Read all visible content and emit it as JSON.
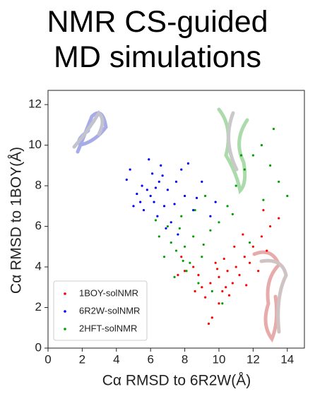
{
  "chart_data": {
    "type": "scatter",
    "title": "NMR CS-guided MD simulations",
    "xlabel": "Cα RMSD to 6R2W(Å)",
    "ylabel": "Cα RMSD to 1BOY(Å)",
    "xlim": [
      0,
      15
    ],
    "ylim": [
      0,
      12.7
    ],
    "xticks": [
      0,
      2,
      4,
      6,
      8,
      10,
      12,
      14
    ],
    "yticks": [
      0,
      2,
      4,
      6,
      8,
      10,
      12
    ],
    "legend": "lower left",
    "series": [
      {
        "name": "1BOY-solNMR",
        "color": "#ff0000",
        "x": [
          10,
          9.5,
          10.5,
          11,
          9,
          10.2,
          8.8,
          11.5,
          12,
          12.5,
          13,
          13.5,
          10.8,
          9.8,
          9.2,
          10,
          8.5,
          8,
          7.8,
          11.2,
          11.8,
          12.3,
          10.6,
          9.6,
          9.4,
          10.9,
          11.4,
          12.8,
          8.6,
          9.9,
          10.3,
          11.6,
          7.6,
          12.6,
          10.4
        ],
        "y": [
          3.5,
          3.2,
          3.8,
          4,
          3,
          2.8,
          3.6,
          4.5,
          5,
          5.5,
          6,
          6.4,
          3.2,
          4.2,
          2.5,
          2.2,
          4,
          3.8,
          4.5,
          3.6,
          4.2,
          3.8,
          2.6,
          1.5,
          1.2,
          5,
          5.6,
          4.8,
          2.8,
          3.9,
          4.4,
          3.1,
          3.6,
          6.8,
          3
        ]
      },
      {
        "name": "6R2W-solNMR",
        "color": "#0000ff",
        "x": [
          6,
          5.8,
          6.2,
          5.5,
          6.5,
          6.8,
          5.2,
          6.1,
          5.6,
          6.4,
          7,
          7.5,
          8,
          8.5,
          9,
          9.5,
          4.8,
          5,
          7.2,
          6.6,
          5.9,
          7.8,
          8.7,
          6.9,
          7.6,
          4.6,
          5.4,
          6.3,
          7.4,
          9.8,
          8.2,
          6.7
        ],
        "y": [
          7.5,
          7.8,
          7.2,
          8,
          8.2,
          7,
          7.6,
          8.6,
          6.8,
          6.5,
          7.8,
          8.2,
          7.5,
          6.8,
          8.2,
          6.5,
          8.8,
          7,
          6.2,
          9,
          9.3,
          8.8,
          7.4,
          5.9,
          5.6,
          8.3,
          7.2,
          7.9,
          7.1,
          7.2,
          9.1,
          8.5
        ]
      },
      {
        "name": "2HFT-solNMR",
        "color": "#00a000",
        "x": [
          8,
          7.5,
          8.5,
          7.2,
          9,
          8.3,
          7,
          7.8,
          9.5,
          10,
          10.5,
          11,
          11.5,
          12,
          12.5,
          13,
          13.5,
          14,
          6.8,
          7.4,
          8.8,
          9.6,
          10.2,
          8.1,
          6.5,
          7.7,
          8.6,
          9.2,
          10.8,
          11.8,
          12.6,
          7.9,
          9.1,
          6.3,
          13.2,
          11.3
        ],
        "y": [
          5,
          4.8,
          5.5,
          5.2,
          4.5,
          4.2,
          6,
          6.5,
          5.8,
          6.2,
          7,
          8,
          8.8,
          9.5,
          10,
          9,
          8.2,
          7.5,
          4.5,
          3.5,
          3.2,
          2.8,
          2.2,
          3.8,
          5.5,
          5.9,
          6.8,
          7.5,
          6.6,
          5.2,
          7.3,
          4.3,
          5.1,
          6.3,
          10.8,
          9.5
        ]
      }
    ]
  }
}
